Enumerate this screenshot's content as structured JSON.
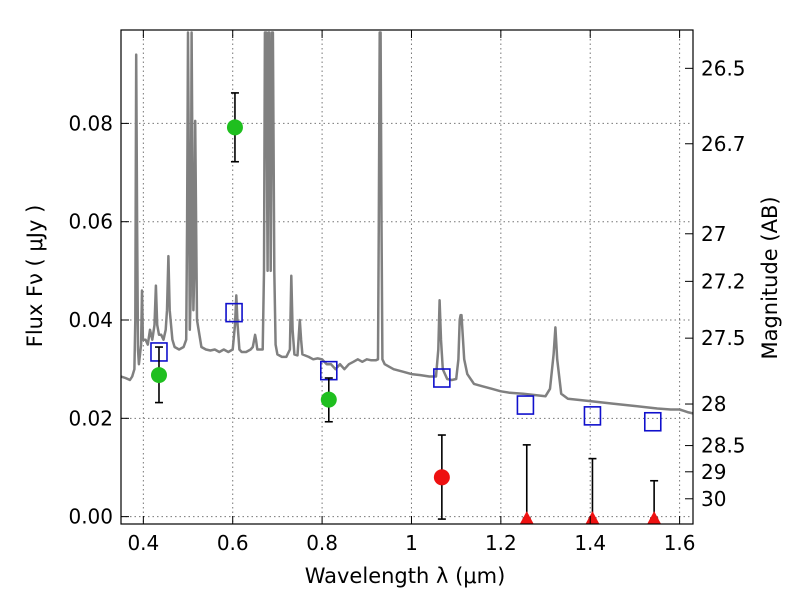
{
  "chart_data": {
    "type": "scatter",
    "title": "",
    "xlabel": "Wavelength  λ (μm)",
    "ylabel": "Flux  Fν  ( μJy )",
    "y2label": "Magnitude (AB)",
    "xlim": [
      0.35,
      1.63
    ],
    "ylim": [
      -0.0015,
      0.099
    ],
    "grid": true,
    "x_ticks": [
      0.4,
      0.6,
      0.8,
      1.0,
      1.2,
      1.4,
      1.6
    ],
    "x_tick_labels": [
      "0.4",
      "0.6",
      "0.8",
      "1",
      "1.2",
      "1.4",
      "1.6"
    ],
    "y_ticks": [
      0.0,
      0.02,
      0.04,
      0.06,
      0.08
    ],
    "y_tick_labels": [
      "0.00",
      "0.02",
      "0.04",
      "0.06",
      "0.08"
    ],
    "mag_ticks": [
      {
        "value": 26.5,
        "label": "26.5"
      },
      {
        "value": 26.7,
        "label": "26.7"
      },
      {
        "value": 27.0,
        "label": "27"
      },
      {
        "value": 27.2,
        "label": "27.2"
      },
      {
        "value": 27.5,
        "label": "27.5"
      },
      {
        "value": 28.0,
        "label": "28"
      },
      {
        "value": 28.5,
        "label": "28.5"
      },
      {
        "value": 29.0,
        "label": "29"
      },
      {
        "value": 30.0,
        "label": "30"
      }
    ],
    "colors": {
      "spectrum": "#808080",
      "detection": "#1fbf1f",
      "nondetection": "#ee1111",
      "model": "#1010cc",
      "errorbar": "#000000",
      "grid": "#777777"
    },
    "series": [
      {
        "name": "model spectrum",
        "kind": "line",
        "points": [
          [
            0.35,
            0.0285
          ],
          [
            0.36,
            0.0282
          ],
          [
            0.37,
            0.0278
          ],
          [
            0.375,
            0.0285
          ],
          [
            0.38,
            0.03
          ],
          [
            0.382,
            0.04
          ],
          [
            0.384,
            0.094
          ],
          [
            0.386,
            0.06
          ],
          [
            0.388,
            0.034
          ],
          [
            0.39,
            0.031
          ],
          [
            0.395,
            0.035
          ],
          [
            0.397,
            0.046
          ],
          [
            0.399,
            0.036
          ],
          [
            0.405,
            0.036
          ],
          [
            0.41,
            0.035
          ],
          [
            0.415,
            0.038
          ],
          [
            0.42,
            0.036
          ],
          [
            0.425,
            0.039
          ],
          [
            0.428,
            0.047
          ],
          [
            0.431,
            0.039
          ],
          [
            0.435,
            0.037
          ],
          [
            0.44,
            0.037
          ],
          [
            0.445,
            0.036
          ],
          [
            0.45,
            0.038
          ],
          [
            0.453,
            0.042
          ],
          [
            0.456,
            0.053
          ],
          [
            0.459,
            0.042
          ],
          [
            0.465,
            0.036
          ],
          [
            0.47,
            0.0345
          ],
          [
            0.48,
            0.034
          ],
          [
            0.49,
            0.0345
          ],
          [
            0.496,
            0.036
          ],
          [
            0.498,
            0.06
          ],
          [
            0.5,
            0.0985
          ],
          [
            0.502,
            0.07
          ],
          [
            0.504,
            0.038
          ],
          [
            0.506,
            0.045
          ],
          [
            0.508,
            0.0985
          ],
          [
            0.51,
            0.07
          ],
          [
            0.512,
            0.042
          ],
          [
            0.514,
            0.05
          ],
          [
            0.516,
            0.0805
          ],
          [
            0.518,
            0.06
          ],
          [
            0.52,
            0.04
          ],
          [
            0.53,
            0.0345
          ],
          [
            0.54,
            0.034
          ],
          [
            0.55,
            0.0338
          ],
          [
            0.56,
            0.034
          ],
          [
            0.57,
            0.0335
          ],
          [
            0.58,
            0.034
          ],
          [
            0.59,
            0.0335
          ],
          [
            0.6,
            0.034
          ],
          [
            0.605,
            0.039
          ],
          [
            0.608,
            0.045
          ],
          [
            0.611,
            0.039
          ],
          [
            0.615,
            0.034
          ],
          [
            0.62,
            0.0335
          ],
          [
            0.63,
            0.0335
          ],
          [
            0.64,
            0.034
          ],
          [
            0.645,
            0.0345
          ],
          [
            0.65,
            0.037
          ],
          [
            0.652,
            0.036
          ],
          [
            0.655,
            0.034
          ],
          [
            0.66,
            0.034
          ],
          [
            0.667,
            0.034
          ],
          [
            0.67,
            0.05
          ],
          [
            0.672,
            0.0985
          ],
          [
            0.675,
            0.0985
          ],
          [
            0.678,
            0.05
          ],
          [
            0.68,
            0.0985
          ],
          [
            0.682,
            0.0985
          ],
          [
            0.685,
            0.05
          ],
          [
            0.688,
            0.0985
          ],
          [
            0.69,
            0.0985
          ],
          [
            0.693,
            0.05
          ],
          [
            0.696,
            0.035
          ],
          [
            0.7,
            0.033
          ],
          [
            0.71,
            0.0325
          ],
          [
            0.72,
            0.0325
          ],
          [
            0.728,
            0.034
          ],
          [
            0.731,
            0.049
          ],
          [
            0.734,
            0.038
          ],
          [
            0.738,
            0.033
          ],
          [
            0.745,
            0.0328
          ],
          [
            0.75,
            0.04
          ],
          [
            0.753,
            0.036
          ],
          [
            0.756,
            0.033
          ],
          [
            0.77,
            0.0325
          ],
          [
            0.78,
            0.032
          ],
          [
            0.79,
            0.0322
          ],
          [
            0.8,
            0.032
          ],
          [
            0.81,
            0.031
          ],
          [
            0.82,
            0.031
          ],
          [
            0.83,
            0.03
          ],
          [
            0.84,
            0.031
          ],
          [
            0.85,
            0.03
          ],
          [
            0.86,
            0.031
          ],
          [
            0.87,
            0.0315
          ],
          [
            0.88,
            0.032
          ],
          [
            0.89,
            0.0315
          ],
          [
            0.9,
            0.032
          ],
          [
            0.91,
            0.0318
          ],
          [
            0.92,
            0.0318
          ],
          [
            0.925,
            0.032
          ],
          [
            0.927,
            0.06
          ],
          [
            0.929,
            0.0985
          ],
          [
            0.931,
            0.0985
          ],
          [
            0.933,
            0.06
          ],
          [
            0.935,
            0.032
          ],
          [
            0.94,
            0.031
          ],
          [
            0.95,
            0.0305
          ],
          [
            0.96,
            0.03
          ],
          [
            0.98,
            0.0295
          ],
          [
            1.0,
            0.029
          ],
          [
            1.02,
            0.0288
          ],
          [
            1.04,
            0.0285
          ],
          [
            1.055,
            0.0285
          ],
          [
            1.06,
            0.034
          ],
          [
            1.063,
            0.044
          ],
          [
            1.066,
            0.036
          ],
          [
            1.07,
            0.03
          ],
          [
            1.08,
            0.028
          ],
          [
            1.09,
            0.0278
          ],
          [
            1.1,
            0.028
          ],
          [
            1.105,
            0.032
          ],
          [
            1.108,
            0.04
          ],
          [
            1.11,
            0.041
          ],
          [
            1.112,
            0.041
          ],
          [
            1.114,
            0.038
          ],
          [
            1.118,
            0.032
          ],
          [
            1.125,
            0.029
          ],
          [
            1.14,
            0.027
          ],
          [
            1.16,
            0.0265
          ],
          [
            1.18,
            0.026
          ],
          [
            1.2,
            0.0255
          ],
          [
            1.22,
            0.0252
          ],
          [
            1.25,
            0.025
          ],
          [
            1.28,
            0.0247
          ],
          [
            1.3,
            0.0245
          ],
          [
            1.31,
            0.026
          ],
          [
            1.318,
            0.033
          ],
          [
            1.322,
            0.0385
          ],
          [
            1.326,
            0.032
          ],
          [
            1.335,
            0.025
          ],
          [
            1.35,
            0.024
          ],
          [
            1.4,
            0.0235
          ],
          [
            1.45,
            0.023
          ],
          [
            1.5,
            0.0225
          ],
          [
            1.55,
            0.022
          ],
          [
            1.58,
            0.0218
          ],
          [
            1.6,
            0.0218
          ],
          [
            1.61,
            0.0215
          ],
          [
            1.62,
            0.0212
          ],
          [
            1.63,
            0.021
          ]
        ]
      },
      {
        "name": "model photometry",
        "kind": "square",
        "points": [
          [
            0.435,
            0.0335
          ],
          [
            0.603,
            0.0415
          ],
          [
            0.815,
            0.0297
          ],
          [
            1.068,
            0.0282
          ],
          [
            1.255,
            0.0227
          ],
          [
            1.405,
            0.0205
          ],
          [
            1.54,
            0.0193
          ]
        ]
      },
      {
        "name": "detections",
        "kind": "circle",
        "points": [
          {
            "x": 0.435,
            "y": 0.0288,
            "lo": 0.0232,
            "hi": 0.0345
          },
          {
            "x": 0.605,
            "y": 0.0792,
            "lo": 0.0722,
            "hi": 0.0862
          },
          {
            "x": 0.815,
            "y": 0.0238,
            "lo": 0.0193,
            "hi": 0.0282
          }
        ]
      },
      {
        "name": "non-detections",
        "kind": "circle",
        "points": [
          {
            "x": 1.068,
            "y": 0.008,
            "lo": -0.0005,
            "hi": 0.0166
          }
        ]
      },
      {
        "name": "upper limits",
        "kind": "triangle",
        "points": [
          {
            "x": 1.258,
            "y": -0.0003,
            "lo": -0.0003,
            "hi": 0.0146
          },
          {
            "x": 1.405,
            "y": -0.0003,
            "lo": -0.0003,
            "hi": 0.0118
          },
          {
            "x": 1.543,
            "y": -0.0003,
            "lo": -0.0003,
            "hi": 0.0073
          }
        ]
      }
    ]
  }
}
